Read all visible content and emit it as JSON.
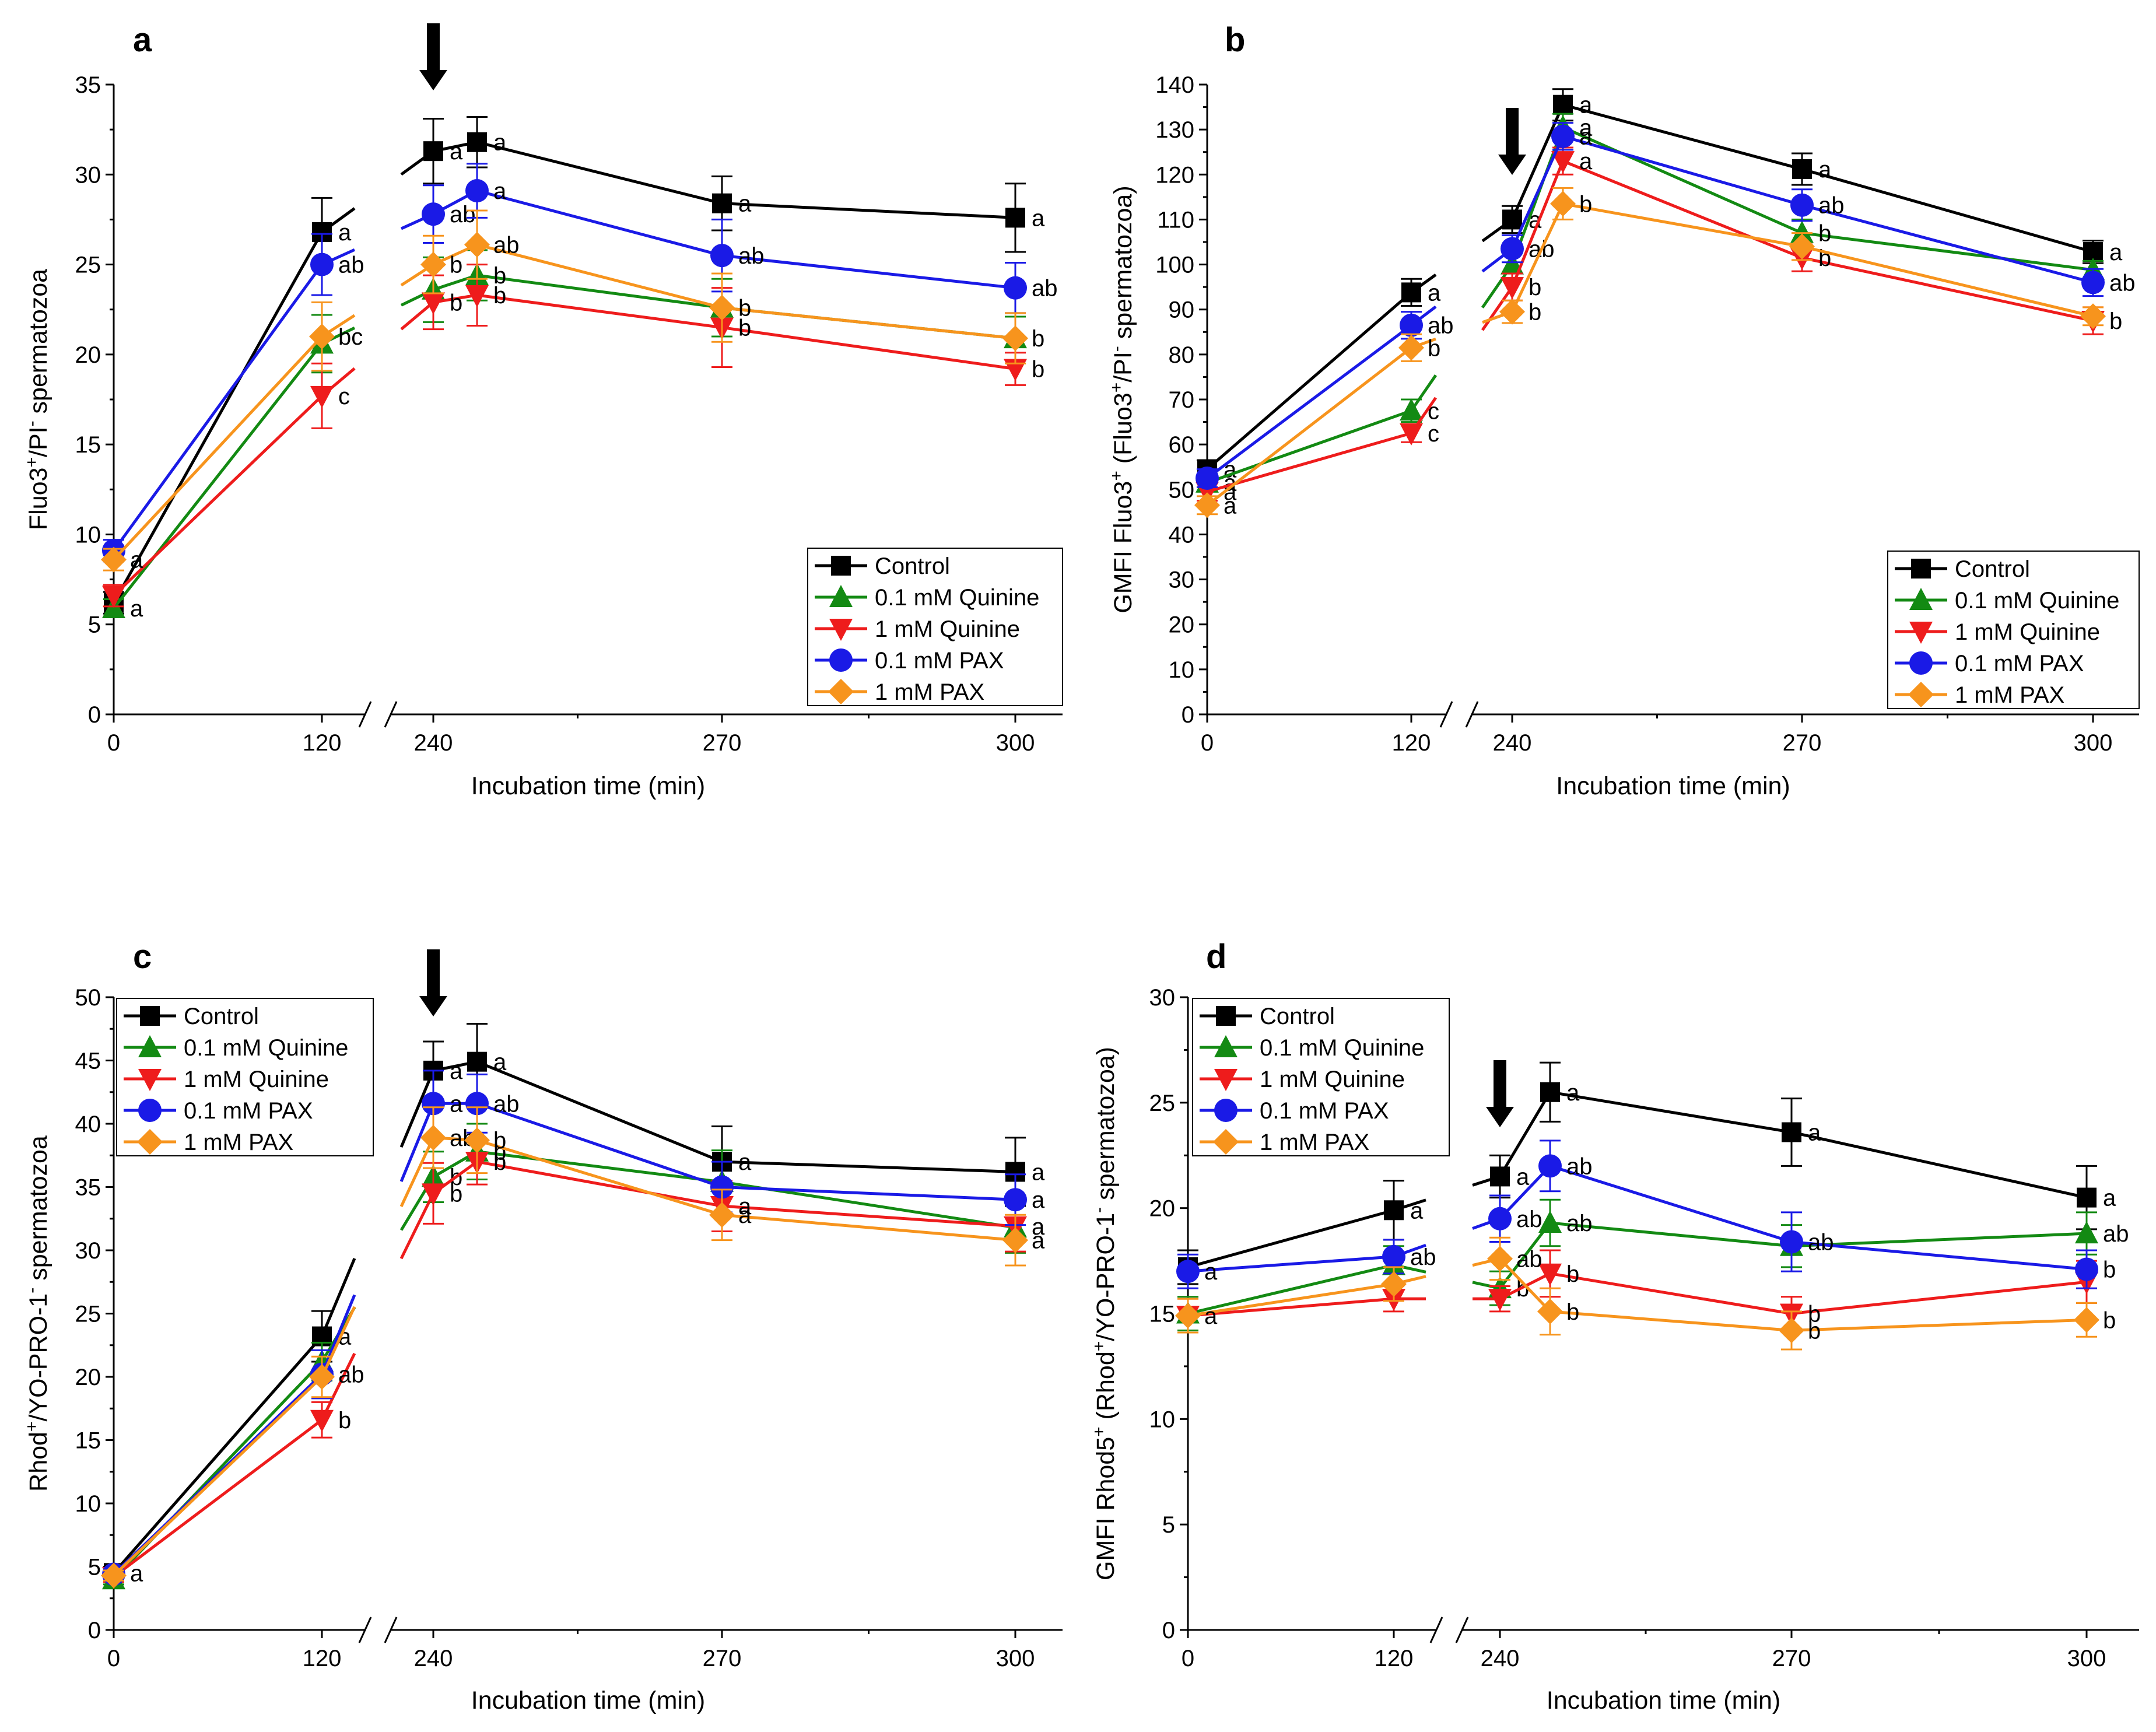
{
  "figure": {
    "series_colors": {
      "Control": "#000000",
      "0.1 mM Quinine": "#138a13",
      "1 mM Quinine": "#ee1c1c",
      "0.1 mM PAX": "#1a1ae6",
      "1 mM PAX": "#f7941d"
    },
    "series_markers": {
      "Control": "square",
      "0.1 mM Quinine": "triangle-up",
      "1 mM Quinine": "triangle-down",
      "0.1 mM PAX": "circle",
      "1 mM PAX": "diamond"
    },
    "arrow_icon": "down-arrow-icon",
    "axis_break_icon": "double-slash-axis-break-icon"
  },
  "chart_data": [
    {
      "panel": "a",
      "type": "line",
      "xlabel": "Incubation time (min)",
      "ylabel": "Fluo3⁺/PI⁻ spermatozoa",
      "x_ticks": [
        "0",
        "120",
        "240",
        "270",
        "300"
      ],
      "ylim": [
        0,
        35
      ],
      "y_ticks": [
        "0",
        "5",
        "10",
        "15",
        "20",
        "25",
        "30",
        "35"
      ],
      "x": [
        0,
        120,
        240,
        255,
        270,
        300
      ],
      "arrow_at": 240,
      "legend_position": "bottom-right",
      "series": [
        {
          "name": "Control",
          "values": [
            6.2,
            26.8,
            31.3,
            31.8,
            28.4,
            27.6
          ],
          "errors": [
            0.6,
            1.9,
            1.8,
            1.4,
            1.5,
            1.9
          ],
          "labels": [
            "",
            "a",
            "a",
            "a",
            "a",
            "a"
          ]
        },
        {
          "name": "0.1 mM Quinine",
          "values": [
            5.9,
            20.6,
            23.6,
            24.4,
            22.6,
            20.9
          ],
          "errors": [
            0.5,
            1.6,
            1.8,
            1.4,
            1.6,
            1.2
          ],
          "labels": [
            "a",
            "",
            "",
            "b",
            "",
            ""
          ]
        },
        {
          "name": "1 mM Quinine",
          "values": [
            6.6,
            17.7,
            22.9,
            23.3,
            21.5,
            19.2
          ],
          "errors": [
            0.6,
            1.8,
            1.5,
            1.7,
            2.2,
            0.9
          ],
          "labels": [
            "",
            "c",
            "b",
            "b",
            "b",
            "b"
          ]
        },
        {
          "name": "0.1 mM PAX",
          "values": [
            9.1,
            25.0,
            27.8,
            29.1,
            25.5,
            23.7
          ],
          "errors": [
            0.6,
            1.7,
            1.6,
            1.5,
            2.0,
            1.4
          ],
          "labels": [
            "",
            "ab",
            "ab",
            "a",
            "ab",
            "ab"
          ]
        },
        {
          "name": "1 mM PAX",
          "values": [
            8.6,
            21.0,
            25.0,
            26.1,
            22.6,
            20.9
          ],
          "errors": [
            0.6,
            1.9,
            1.6,
            1.9,
            1.9,
            1.4
          ],
          "labels": [
            "a",
            "bc",
            "b",
            "ab",
            "b",
            "b"
          ]
        }
      ]
    },
    {
      "panel": "b",
      "type": "line",
      "xlabel": "Incubation time (min)",
      "ylabel": "GMFI Fluo3⁺ (Fluo3⁺/PI⁻ spermatozoa)",
      "x_ticks": [
        "0",
        "120",
        "240",
        "270",
        "300"
      ],
      "ylim": [
        0,
        140
      ],
      "y_ticks": [
        "0",
        "10",
        "20",
        "30",
        "40",
        "50",
        "60",
        "70",
        "80",
        "90",
        "100",
        "110",
        "120",
        "130",
        "140"
      ],
      "x": [
        0,
        120,
        240,
        255,
        270,
        300
      ],
      "arrow_at": 240,
      "legend_position": "bottom-right",
      "series": [
        {
          "name": "Control",
          "values": [
            54.5,
            93.8,
            110.0,
            135.5,
            121.2,
            102.8
          ],
          "errors": [
            2.0,
            3.0,
            3.0,
            3.5,
            3.5,
            2.5
          ],
          "labels": [
            "a",
            "a",
            "a",
            "a",
            "a",
            "a"
          ]
        },
        {
          "name": "0.1 mM Quinine",
          "values": [
            51.5,
            67.5,
            100.0,
            130.5,
            107.0,
            98.8
          ],
          "errors": [
            2.0,
            2.5,
            3.0,
            3.0,
            3.0,
            2.0
          ],
          "labels": [
            "a",
            "c",
            "",
            "a",
            "b",
            ""
          ]
        },
        {
          "name": "1 mM Quinine",
          "values": [
            49.5,
            62.5,
            95.0,
            123.0,
            101.5,
            87.5
          ],
          "errors": [
            2.0,
            2.0,
            3.0,
            3.0,
            3.0,
            3.0
          ],
          "labels": [
            "a",
            "c",
            "b",
            "a",
            "b",
            "b"
          ]
        },
        {
          "name": "0.1 mM PAX",
          "values": [
            52.5,
            86.5,
            103.5,
            128.5,
            113.2,
            96.0
          ],
          "errors": [
            2.0,
            3.0,
            3.0,
            3.0,
            3.5,
            3.0
          ],
          "labels": [
            "",
            "ab",
            "ab",
            "a",
            "ab",
            "ab"
          ]
        },
        {
          "name": "1 mM PAX",
          "values": [
            46.5,
            81.5,
            89.5,
            113.5,
            104.0,
            88.5
          ],
          "errors": [
            2.0,
            3.0,
            2.5,
            3.5,
            3.0,
            2.0
          ],
          "labels": [
            "a",
            "b",
            "b",
            "b",
            "",
            ""
          ]
        }
      ]
    },
    {
      "panel": "c",
      "type": "line",
      "xlabel": "Incubation time (min)",
      "ylabel": "Rhod⁺/YO-PRO-1⁻ spermatozoa",
      "x_ticks": [
        "0",
        "120",
        "240",
        "270",
        "300"
      ],
      "ylim": [
        0,
        50
      ],
      "y_ticks": [
        "0",
        "5",
        "10",
        "15",
        "20",
        "25",
        "30",
        "35",
        "40",
        "45",
        "50"
      ],
      "x": [
        0,
        120,
        240,
        255,
        270,
        300
      ],
      "arrow_at": 240,
      "legend_position": "top-left",
      "series": [
        {
          "name": "Control",
          "values": [
            4.5,
            23.2,
            44.2,
            44.9,
            37.0,
            36.2
          ],
          "errors": [
            0.5,
            2.0,
            2.3,
            3.0,
            2.8,
            2.7
          ],
          "labels": [
            "a",
            "a",
            "a",
            "a",
            "a",
            "a"
          ]
        },
        {
          "name": "0.1 mM Quinine",
          "values": [
            4.0,
            21.2,
            35.8,
            37.8,
            35.4,
            31.8
          ],
          "errors": [
            0.4,
            1.5,
            2.0,
            2.2,
            2.5,
            2.0
          ],
          "labels": [
            "",
            "",
            "b",
            "b",
            "",
            ""
          ]
        },
        {
          "name": "1 mM Quinine",
          "values": [
            4.2,
            16.6,
            34.5,
            37.0,
            33.5,
            31.9
          ],
          "errors": [
            0.4,
            1.4,
            2.4,
            1.8,
            2.0,
            2.0
          ],
          "labels": [
            "",
            "b",
            "b",
            "b",
            "a",
            "a"
          ]
        },
        {
          "name": "0.1 mM PAX",
          "values": [
            4.4,
            20.2,
            41.6,
            41.6,
            35.0,
            34.0
          ],
          "errors": [
            0.4,
            1.9,
            2.6,
            2.3,
            2.0,
            2.0
          ],
          "labels": [
            "",
            "ab",
            "a",
            "ab",
            "",
            "a"
          ]
        },
        {
          "name": "1 mM PAX",
          "values": [
            4.3,
            20.0,
            38.9,
            38.7,
            32.8,
            30.8
          ],
          "errors": [
            0.4,
            1.6,
            2.4,
            2.6,
            2.0,
            2.0
          ],
          "labels": [
            "",
            "",
            "ab",
            "b",
            "a",
            "a"
          ]
        }
      ]
    },
    {
      "panel": "d",
      "type": "line",
      "xlabel": "Incubation time (min)",
      "ylabel": "GMFI Rhod5⁺ (Rhod⁺/YO-PRO-1⁻ spermatozoa)",
      "x_ticks": [
        "0",
        "120",
        "240",
        "270",
        "300"
      ],
      "ylim": [
        0,
        30
      ],
      "y_ticks": [
        "0",
        "5",
        "10",
        "15",
        "20",
        "25",
        "30"
      ],
      "x": [
        0,
        120,
        240,
        255,
        270,
        300
      ],
      "arrow_at": 240,
      "legend_position": "top-left",
      "series": [
        {
          "name": "Control",
          "values": [
            17.2,
            19.9,
            21.5,
            25.5,
            23.6,
            20.5
          ],
          "errors": [
            0.8,
            1.4,
            1.0,
            1.4,
            1.6,
            1.5
          ],
          "labels": [
            "",
            "a",
            "a",
            "a",
            "a",
            "a"
          ]
        },
        {
          "name": "0.1 mM Quinine",
          "values": [
            15.0,
            17.3,
            16.2,
            19.3,
            18.2,
            18.8
          ],
          "errors": [
            0.8,
            0.9,
            0.8,
            1.1,
            1.0,
            1.0
          ],
          "labels": [
            "",
            "",
            "b",
            "ab",
            "",
            "ab"
          ]
        },
        {
          "name": "1 mM Quinine",
          "values": [
            14.9,
            15.7,
            15.7,
            16.9,
            15.0,
            16.5
          ],
          "errors": [
            0.8,
            0.6,
            0.6,
            1.1,
            0.8,
            1.0
          ],
          "labels": [
            "",
            "",
            "",
            "b",
            "b",
            ""
          ]
        },
        {
          "name": "0.1 mM PAX",
          "values": [
            17.0,
            17.7,
            19.5,
            22.0,
            18.4,
            17.1
          ],
          "errors": [
            0.8,
            0.8,
            1.1,
            1.2,
            1.4,
            0.9
          ],
          "labels": [
            "a",
            "ab",
            "ab",
            "ab",
            "ab",
            "b"
          ]
        },
        {
          "name": "1 mM PAX",
          "values": [
            14.9,
            16.4,
            17.6,
            15.1,
            14.2,
            14.7
          ],
          "errors": [
            0.8,
            0.8,
            1.0,
            1.1,
            0.9,
            0.8
          ],
          "labels": [
            "a",
            "",
            "ab",
            "b",
            "b",
            "b"
          ]
        }
      ]
    }
  ]
}
